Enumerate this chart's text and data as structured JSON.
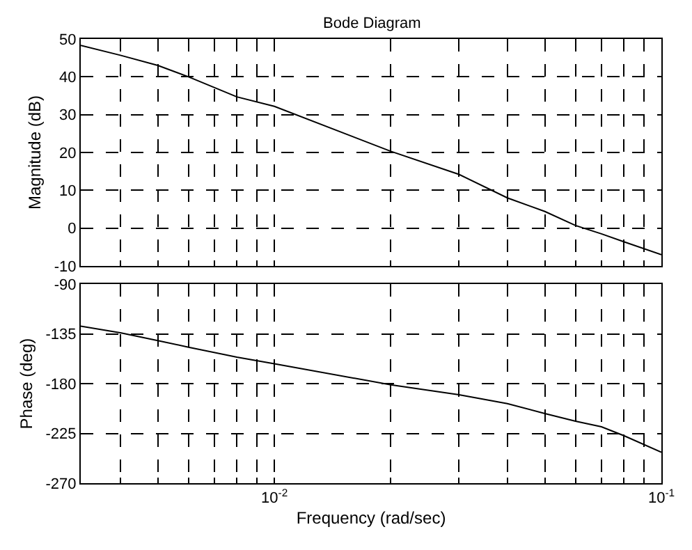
{
  "chart_data": [
    {
      "type": "line",
      "title": "Bode Diagram",
      "ylabel": "Magnitude (dB)",
      "log": "x",
      "grid": true,
      "tick_labels": "y",
      "line_style": "solid",
      "marker": "none",
      "x": [
        0.00316,
        0.004,
        0.005,
        0.006,
        0.008,
        0.01,
        0.02,
        0.03,
        0.04,
        0.05,
        0.06,
        0.07,
        0.08,
        0.1
      ],
      "series": [
        {
          "color": "#000000",
          "values": [
            48.3,
            45.7,
            43,
            40,
            34.7,
            32.2,
            20.3,
            14.2,
            8,
            4.4,
            0.7,
            -1.5,
            -3.6,
            -7
          ]
        }
      ],
      "xlim": [
        0.00316,
        0.1
      ],
      "xticks": [
        {
          "value": 0.004,
          "label": null
        },
        {
          "value": 0.005,
          "label": null
        },
        {
          "value": 0.006,
          "label": null
        },
        {
          "value": 0.007,
          "label": null
        },
        {
          "value": 0.008,
          "label": null
        },
        {
          "value": 0.009,
          "label": null
        },
        {
          "value": 0.01,
          "label": null
        },
        {
          "value": 0.02,
          "label": null
        },
        {
          "value": 0.03,
          "label": null
        },
        {
          "value": 0.04,
          "label": null
        },
        {
          "value": 0.05,
          "label": null
        },
        {
          "value": 0.06,
          "label": null
        },
        {
          "value": 0.07,
          "label": null
        },
        {
          "value": 0.08,
          "label": null
        },
        {
          "value": 0.09,
          "label": null
        },
        {
          "value": 0.1,
          "label": null
        }
      ],
      "ylim": [
        -10,
        50
      ],
      "yticks": [
        -10,
        0,
        10,
        20,
        30,
        40,
        50
      ]
    },
    {
      "type": "line",
      "ylabel": "Phase (deg)",
      "xlabel": "Frequency (rad/sec)",
      "log": "x",
      "grid": true,
      "line_style": "solid",
      "marker": "none",
      "x": [
        0.00316,
        0.004,
        0.005,
        0.006,
        0.008,
        0.01,
        0.02,
        0.03,
        0.04,
        0.05,
        0.06,
        0.07,
        0.08,
        0.1
      ],
      "series": [
        {
          "color": "#000000",
          "values": [
            -128,
            -134,
            -141,
            -147,
            -156,
            -162,
            -181,
            -190,
            -198,
            -207,
            -214,
            -219,
            -227,
            -242
          ]
        }
      ],
      "xlim": [
        0.00316,
        0.1
      ],
      "xticks": [
        {
          "value": 0.004,
          "label": null
        },
        {
          "value": 0.005,
          "label": null
        },
        {
          "value": 0.006,
          "label": null
        },
        {
          "value": 0.007,
          "label": null
        },
        {
          "value": 0.008,
          "label": null
        },
        {
          "value": 0.009,
          "label": null
        },
        {
          "value": 0.01,
          "label": "10$^{-2}$"
        },
        {
          "value": 0.02,
          "label": null
        },
        {
          "value": 0.03,
          "label": null
        },
        {
          "value": 0.04,
          "label": null
        },
        {
          "value": 0.05,
          "label": null
        },
        {
          "value": 0.06,
          "label": null
        },
        {
          "value": 0.07,
          "label": null
        },
        {
          "value": 0.08,
          "label": null
        },
        {
          "value": 0.09,
          "label": null
        },
        {
          "value": 0.1,
          "label": "10$^{-1}$"
        }
      ],
      "ylim": [
        -270,
        -90
      ],
      "yticks": [
        -270,
        -225,
        -180,
        -135,
        -90
      ]
    }
  ]
}
